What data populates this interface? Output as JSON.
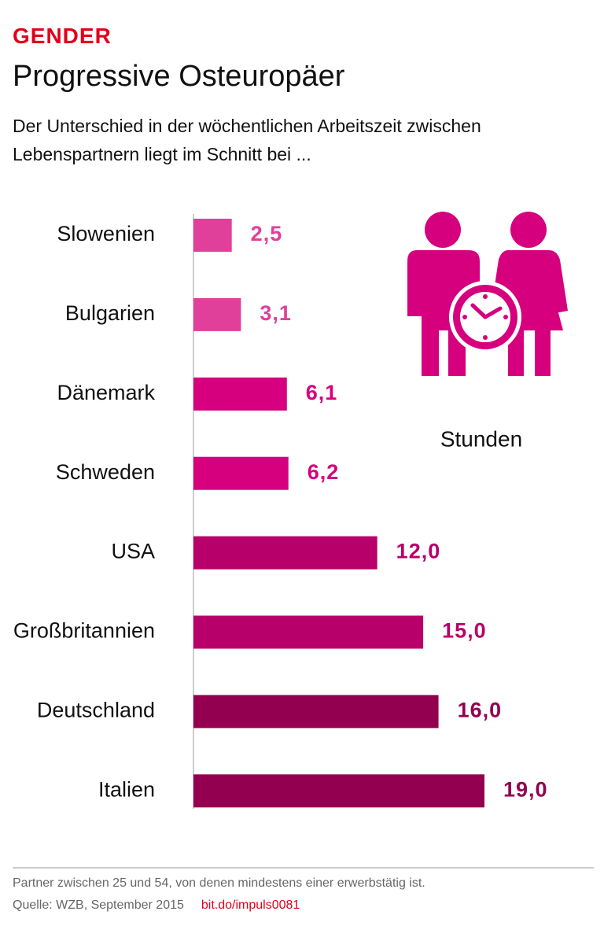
{
  "kicker": "GENDER",
  "chart_data": {
    "type": "hbar",
    "title": "Progressive Osteuropäer",
    "subtitle": "Der Unterschied in der wöchentlichen Arbeitszeit zwischen Lebenspartnern liegt im Schnitt bei ...",
    "unit_label": "Stunden",
    "categories": [
      "Slowenien",
      "Bulgarien",
      "Dänemark",
      "Schweden",
      "USA",
      "Großbritannien",
      "Deutschland",
      "Italien"
    ],
    "values": [
      2.5,
      3.1,
      6.1,
      6.2,
      12.0,
      15.0,
      16.0,
      19.0
    ],
    "value_labels": [
      "2,5",
      "3,1",
      "6,1",
      "6,2",
      "12,0",
      "15,0",
      "16,0",
      "19,0"
    ],
    "colors": [
      "#e0409a",
      "#e0409a",
      "#d6007f",
      "#d6007f",
      "#b8006a",
      "#b8006a",
      "#94004f",
      "#94004f"
    ]
  },
  "footer": {
    "note": "Partner zwischen 25 und 54, von denen mindestens einer erwerbstätig ist.",
    "source": "Quelle: WZB, September 2015",
    "link": "bit.do/impuls0081"
  }
}
